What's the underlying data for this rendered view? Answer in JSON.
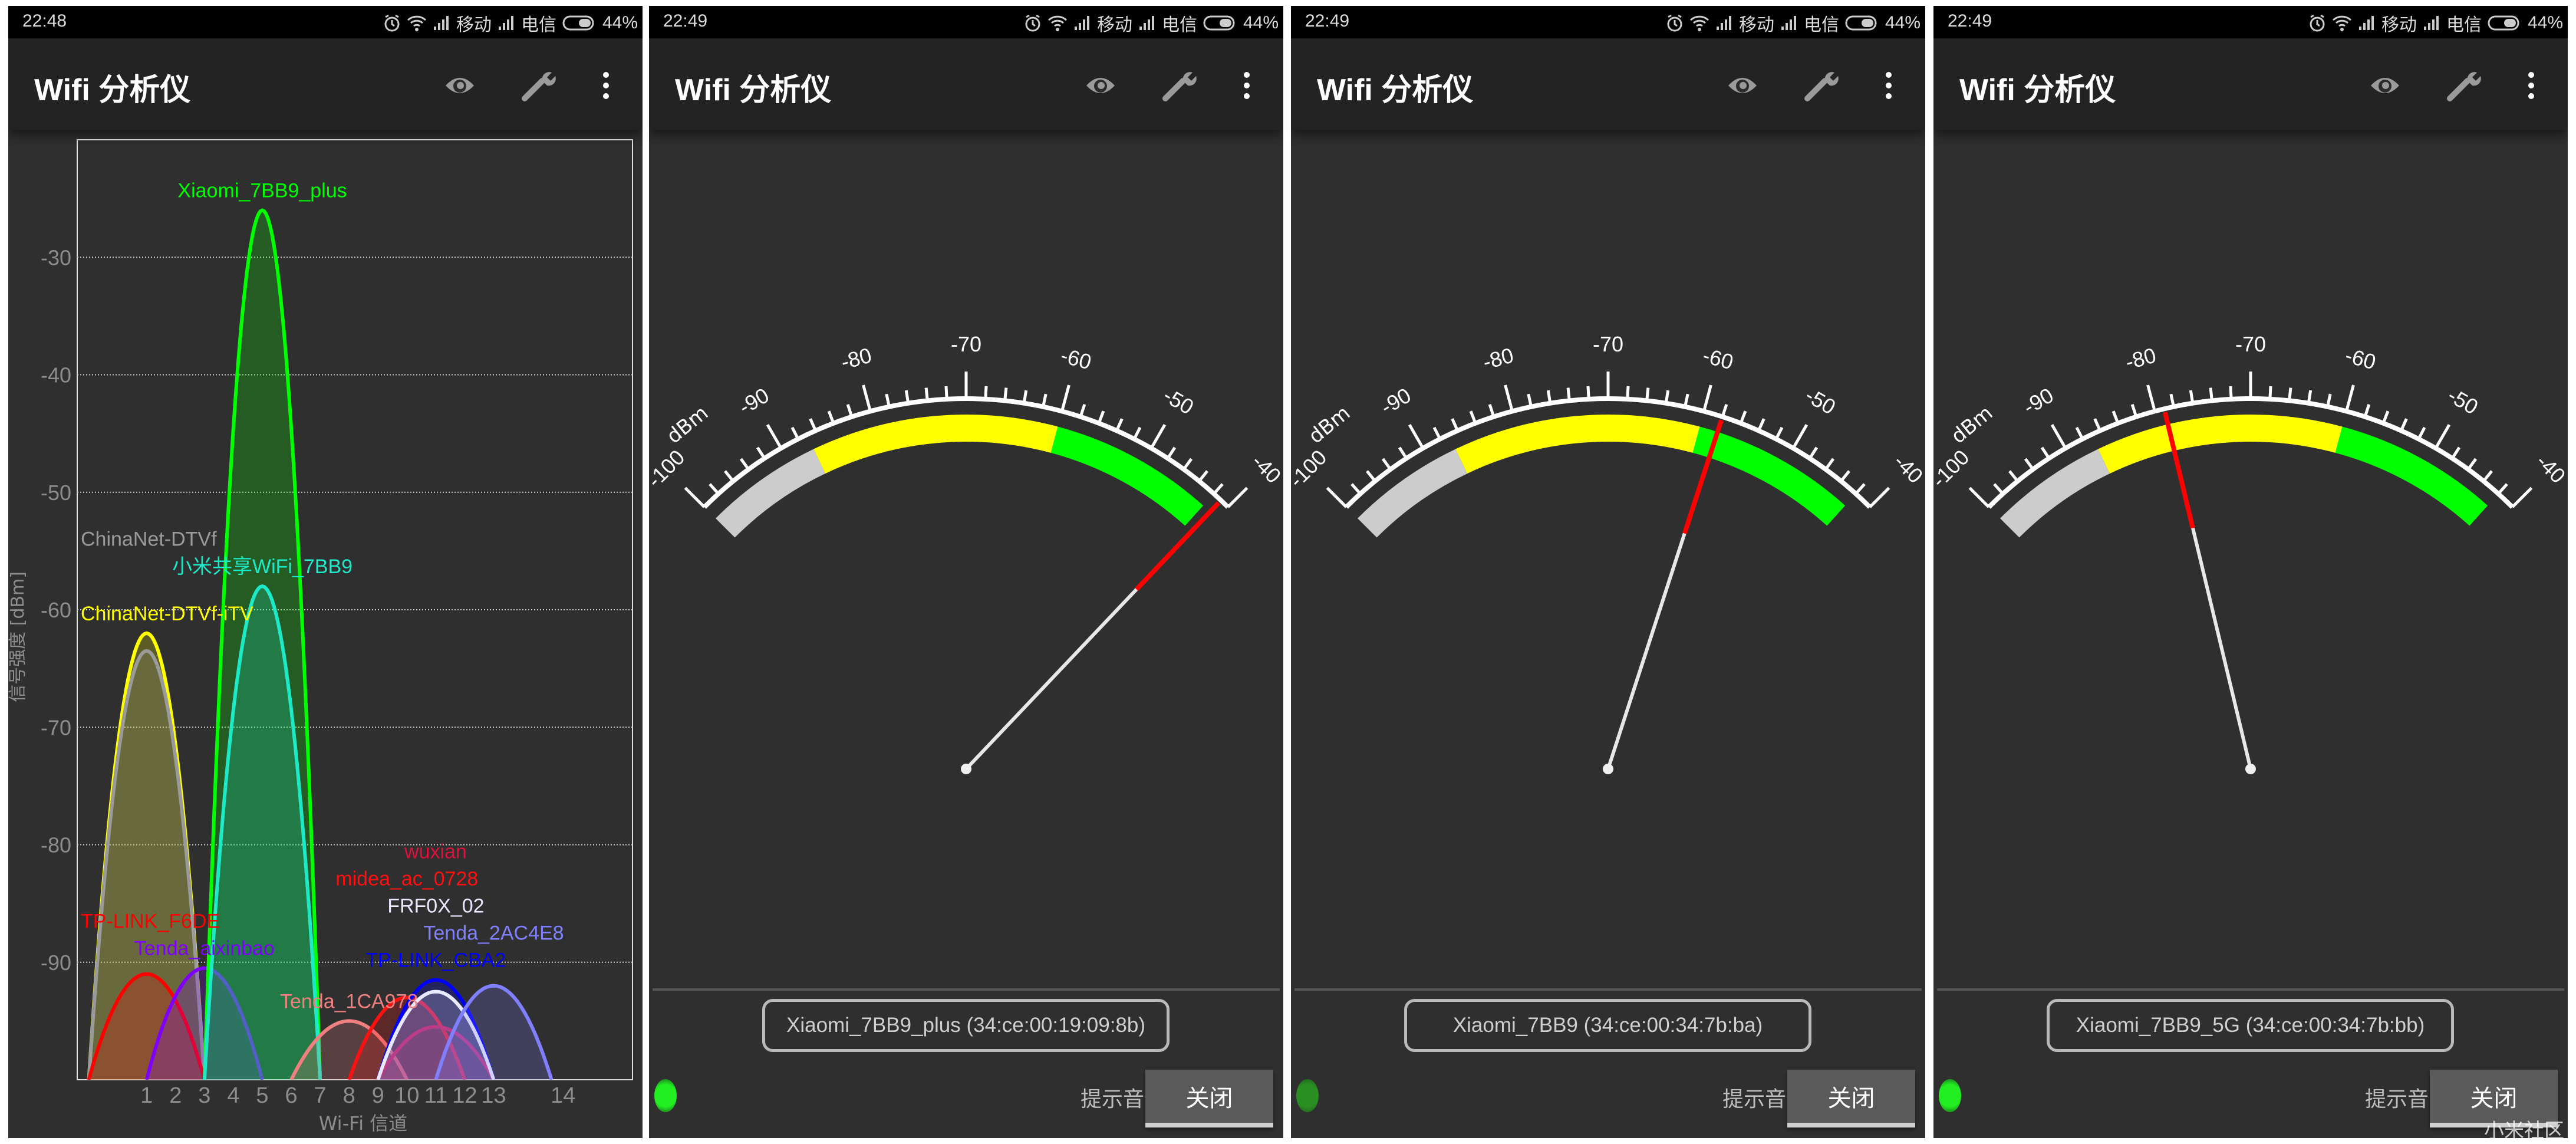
{
  "app_title": "Wifi 分析仪",
  "toolbar_icons": [
    "eye-icon",
    "wrench-icon",
    "more-vert-icon"
  ],
  "status": {
    "carrier1": "移动",
    "carrier2": "电信",
    "battery": "44%",
    "icons": [
      "alarm-icon",
      "wifi-icon",
      "signal-icon",
      "battery-icon"
    ]
  },
  "screens": [
    {
      "time": "22:48"
    },
    {
      "time": "22:49",
      "device": "Xiaomi_7BB9_plus (34:ce:00:19:09:8b)",
      "signal_dbm": -41,
      "led_color": "#22ee22"
    },
    {
      "time": "22:49",
      "device": "Xiaomi_7BB9 (34:ce:00:34:7b:ba)",
      "signal_dbm": -58,
      "led_color": "#2a8f22"
    },
    {
      "time": "22:49",
      "device": "Xiaomi_7BB9_5G (34:ce:00:34:7b:bb)",
      "signal_dbm": -79,
      "led_color": "#22ee22"
    }
  ],
  "meter": {
    "unit": "dBm",
    "min": -100,
    "max": -40,
    "tick_labels": [
      "-100",
      "-90",
      "-80",
      "-70",
      "-60",
      "-50",
      "-40"
    ],
    "bands": [
      {
        "from": -100,
        "to": -87,
        "color": "#cccccc"
      },
      {
        "from": -87,
        "to": -60,
        "color": "#ffff00"
      },
      {
        "from": -60,
        "to": -42,
        "color": "#00ff00"
      }
    ],
    "sound_label": "提示音",
    "close_label": "关闭"
  },
  "watermark": "小米社区",
  "chart_data": {
    "type": "area",
    "xlabel": "Wi-Fi 信道",
    "ylabel": "信号强度 [dBm]",
    "ylim": [
      -100,
      -20
    ],
    "yticks": [
      -30,
      -40,
      -50,
      -60,
      -70,
      -80,
      -90
    ],
    "xticks": [
      1,
      2,
      3,
      4,
      5,
      6,
      7,
      8,
      9,
      10,
      11,
      12,
      13,
      14
    ],
    "grid": "horizontal-dotted",
    "series": [
      {
        "name": "ChinaNet-DTVf-iTV",
        "channel": 1,
        "dbm": -62,
        "color": "#ffff00"
      },
      {
        "name": "ChinaNet-DTVf",
        "channel": 1,
        "dbm": -63.5,
        "color": "#9a9a9a"
      },
      {
        "name": "TP-LINK_F6DE",
        "channel": 1,
        "dbm": -91,
        "color": "#ff0000"
      },
      {
        "name": "Tenda_aixinbao",
        "channel": 3,
        "dbm": -90.5,
        "color": "#7f00ff"
      },
      {
        "name": "Xiaomi_7BB9_plus",
        "channel": 5,
        "dbm": -26,
        "color": "#00ff00"
      },
      {
        "name": "小米共享WiFi_7BB9",
        "channel": 5,
        "dbm": -58,
        "color": "#1de9c6"
      },
      {
        "name": "Tenda_1CA978",
        "channel": 8,
        "dbm": -95,
        "color": "#f08080"
      },
      {
        "name": "midea_ac_0728",
        "channel": 10,
        "dbm": -93,
        "color": "#ff1010"
      },
      {
        "name": "wuxian",
        "channel": 11,
        "dbm": -95.5,
        "color": "#e0103c"
      },
      {
        "name": "TP-LINK_CBA2",
        "channel": 11,
        "dbm": -91.5,
        "color": "#0000ff"
      },
      {
        "name": "FRF0X_02",
        "channel": 11,
        "dbm": -92.5,
        "color": "#e8e8ff"
      },
      {
        "name": "Tenda_2AC4E8",
        "channel": 13,
        "dbm": -92,
        "color": "#8080ff"
      }
    ]
  }
}
